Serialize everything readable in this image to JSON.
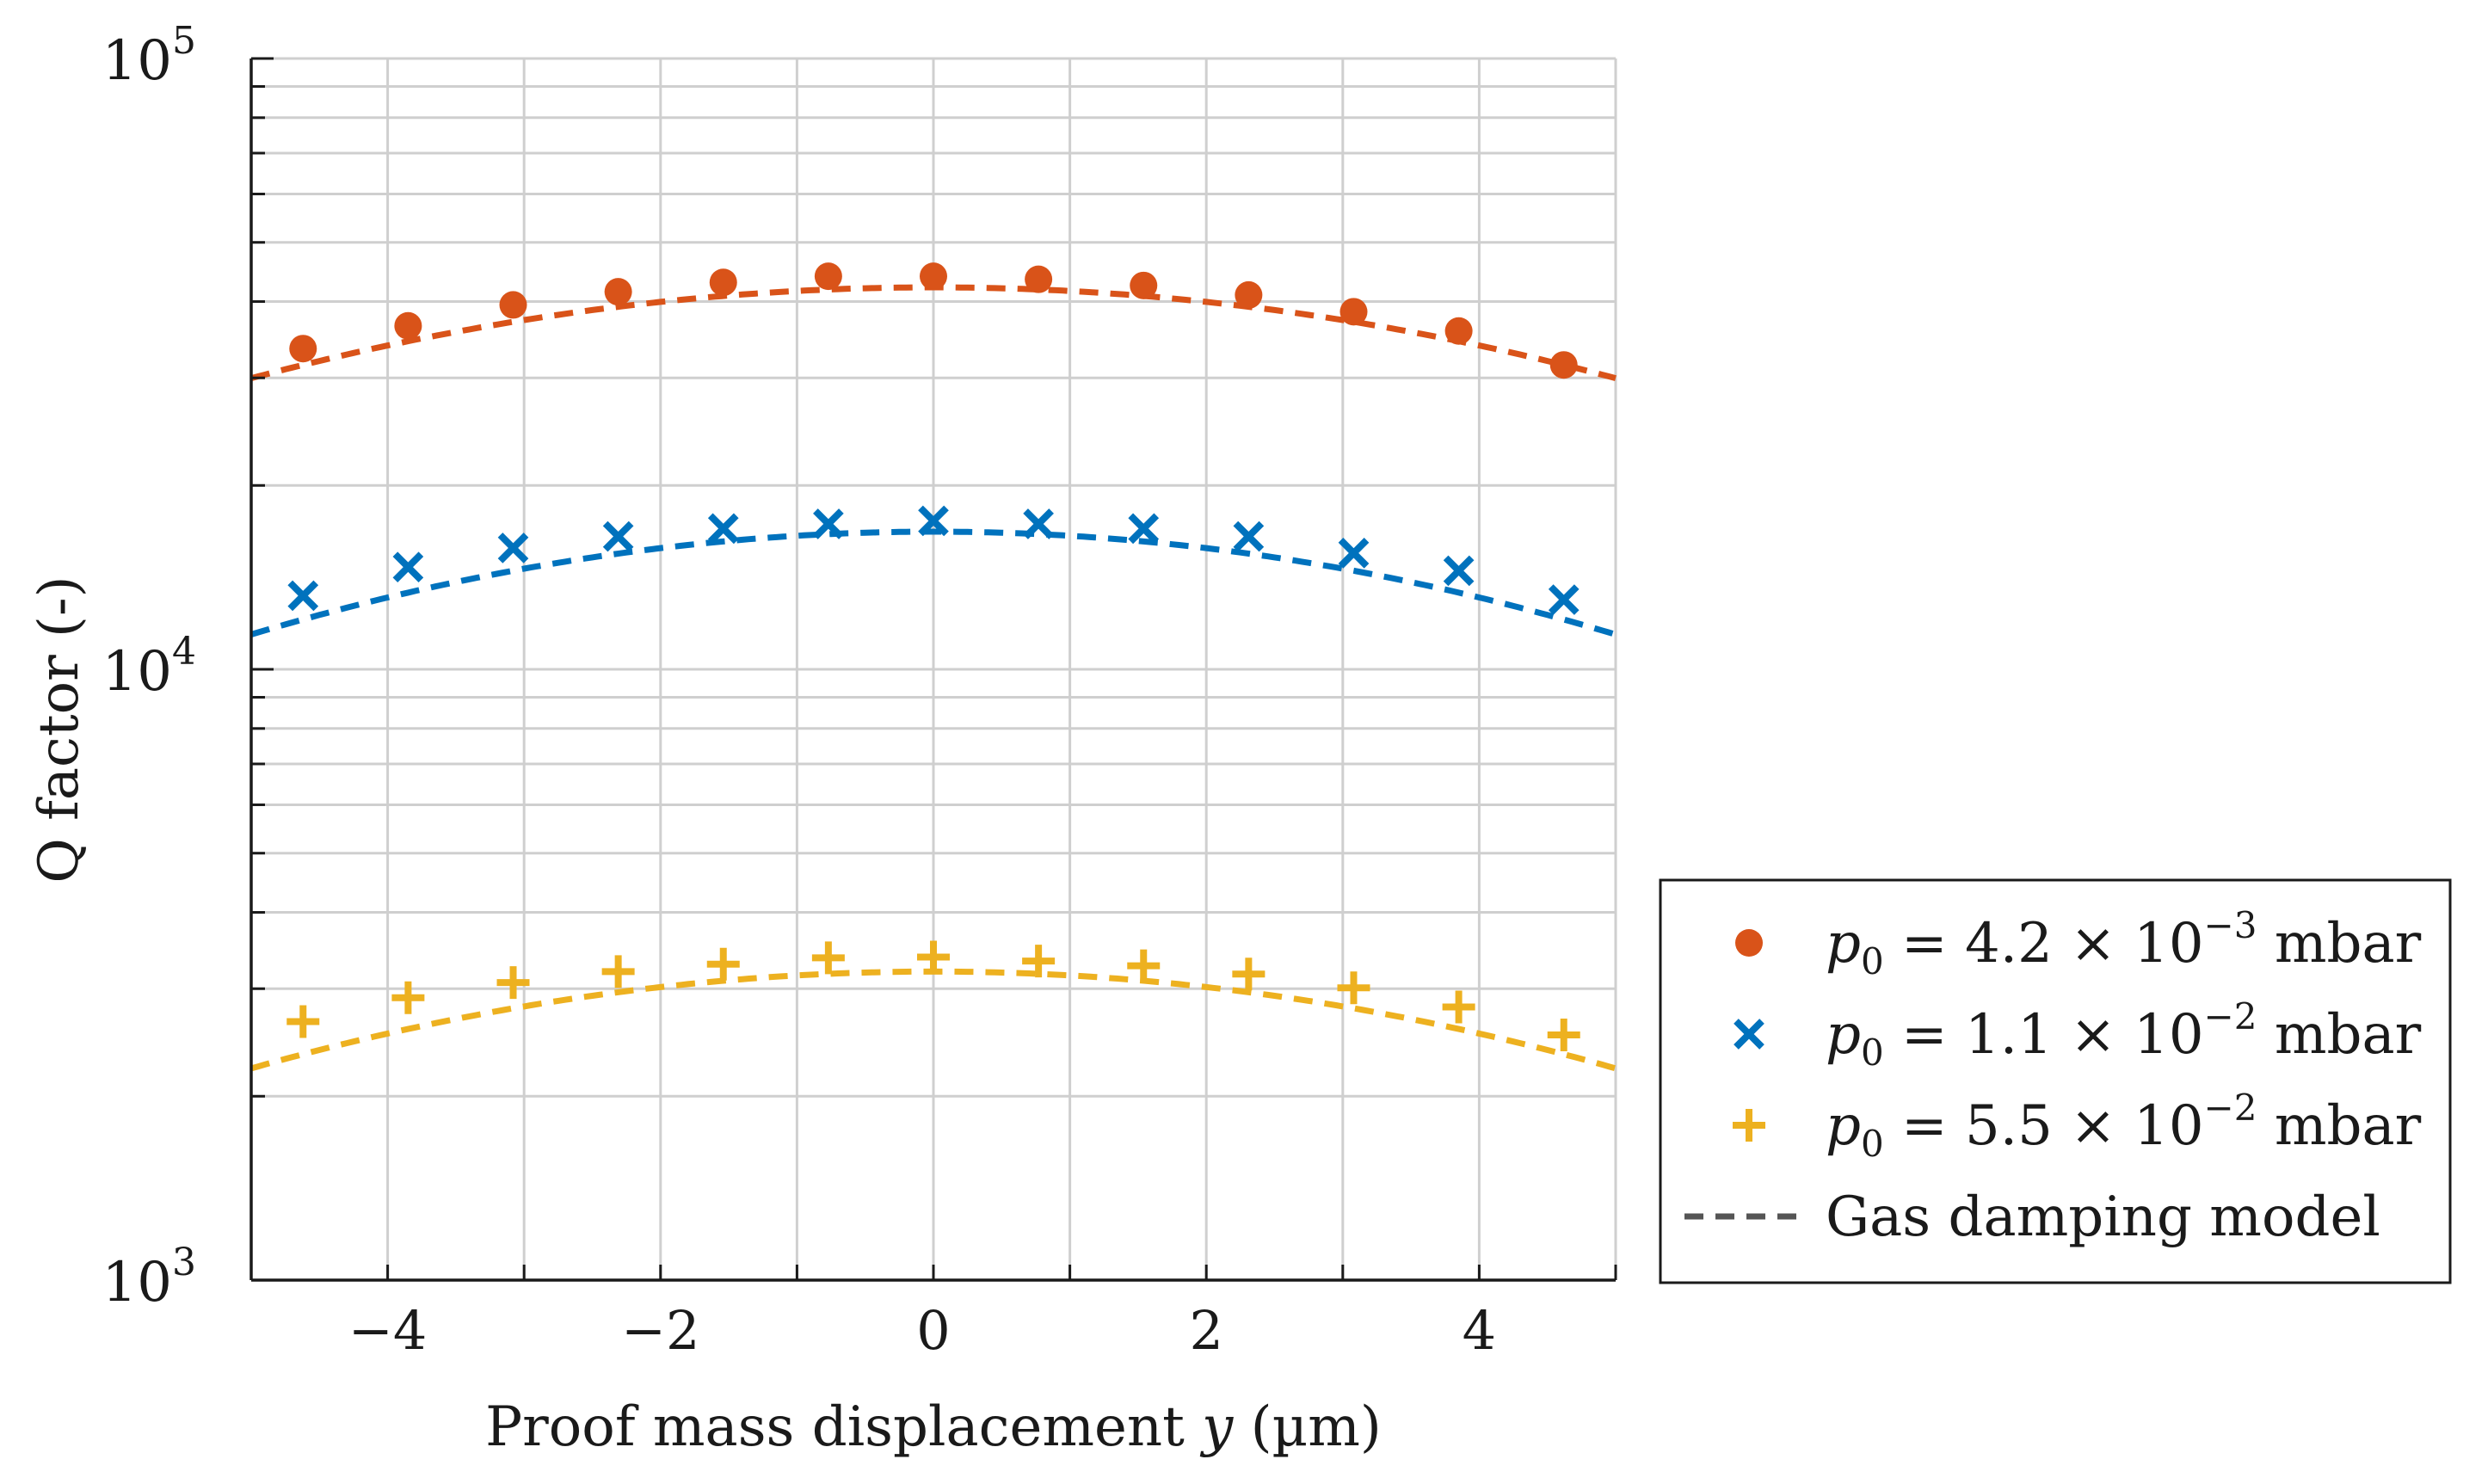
{
  "chart_data": {
    "type": "scatter",
    "xlabel_text": "Proof mass displacement",
    "xlabel_var": "y",
    "xlabel_unit": "(µm)",
    "ylabel": "Q factor (-)",
    "xlim": [
      -5,
      5
    ],
    "ylim": [
      1000,
      100000
    ],
    "yscale": "log",
    "grid": true,
    "legend_position": "outside-right-bottom",
    "x_ticks": [
      {
        "value": -4,
        "label": "−4"
      },
      {
        "value": -2,
        "label": "−2"
      },
      {
        "value": 0,
        "label": "0"
      },
      {
        "value": 2,
        "label": "2"
      },
      {
        "value": 4,
        "label": "4"
      }
    ],
    "y_ticks": [
      {
        "value": 1000,
        "base": "10",
        "exp": "3"
      },
      {
        "value": 10000,
        "base": "10",
        "exp": "4"
      },
      {
        "value": 100000,
        "base": "10",
        "exp": "5"
      }
    ],
    "x": [
      -4.62,
      -3.85,
      -3.08,
      -2.31,
      -1.54,
      -0.77,
      0.0,
      0.77,
      1.54,
      2.31,
      3.08,
      3.85,
      4.62
    ],
    "series": [
      {
        "name": "p0 = 4.2e-3 mbar",
        "legend_lhs": "p",
        "legend_sub": "0",
        "legend_mid": " = 4.2 × 10",
        "legend_exp": "−3",
        "legend_unit": " mbar",
        "marker": "circle",
        "color": "#d95319",
        "values": [
          33500,
          36500,
          39500,
          41500,
          43000,
          44000,
          44000,
          43500,
          42500,
          41000,
          38500,
          35800,
          31500
        ],
        "model": {
          "peak": 42200,
          "curvature": 0.0137
        }
      },
      {
        "name": "p0 = 1.1e-2 mbar",
        "legend_lhs": "p",
        "legend_sub": "0",
        "legend_mid": " = 1.1 × 10",
        "legend_exp": "−2",
        "legend_unit": " mbar",
        "marker": "x",
        "color": "#0072bd",
        "values": [
          13200,
          14700,
          15800,
          16500,
          17000,
          17300,
          17500,
          17300,
          17000,
          16500,
          15500,
          14500,
          13000
        ],
        "model": {
          "peak": 16800,
          "curvature": 0.0155
        }
      },
      {
        "name": "p0 = 5.5e-2 mbar",
        "legend_lhs": "p",
        "legend_sub": "0",
        "legend_mid": " = 5.5 × 10",
        "legend_exp": "−2",
        "legend_unit": " mbar",
        "marker": "plus",
        "color": "#edb120",
        "values": [
          2650,
          2900,
          3070,
          3200,
          3290,
          3370,
          3380,
          3330,
          3270,
          3170,
          3010,
          2800,
          2520
        ],
        "model": {
          "peak": 3200,
          "curvature": 0.0146
        }
      }
    ],
    "model_legend": {
      "label": "Gas damping model",
      "color": "#555555"
    }
  }
}
